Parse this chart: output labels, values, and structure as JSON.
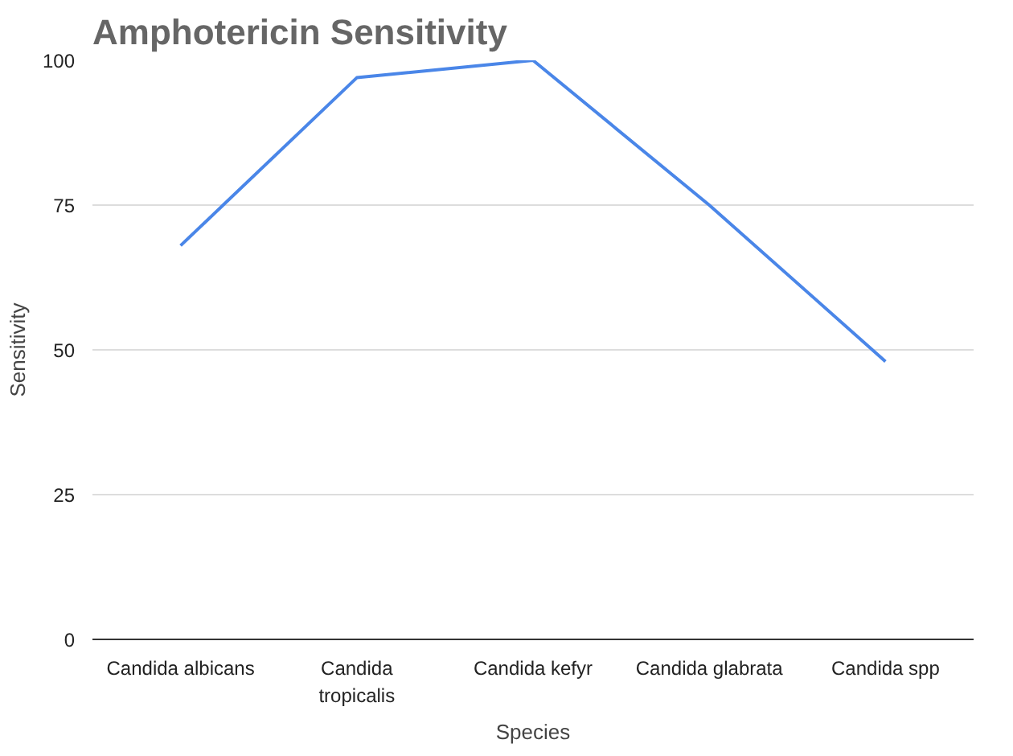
{
  "chart_data": {
    "type": "line",
    "title": "Amphotericin Sensitivity",
    "xlabel": "Species",
    "ylabel": "Sensitivity",
    "categories": [
      "Candida albicans",
      "Candida tropicalis",
      "Candida kefyr",
      "Candida glabrata",
      "Candida spp"
    ],
    "series": [
      {
        "color": "#4a86e8",
        "values": [
          68,
          97,
          100,
          75,
          48
        ]
      }
    ],
    "ylim": [
      0,
      100
    ],
    "yticks": [
      0,
      25,
      50,
      75,
      100
    ],
    "grid": "y"
  }
}
